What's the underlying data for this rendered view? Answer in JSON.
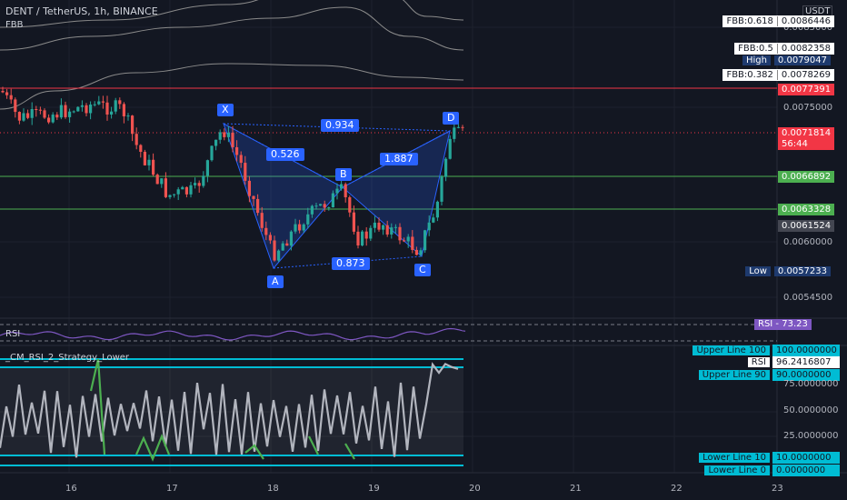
{
  "header": {
    "symbol_line": "DENT / TetherUS, 1h, BINANCE",
    "indicator": "FBB"
  },
  "currency": "USDT",
  "price_axis": {
    "ticks": [
      "0.0085000",
      "0.0075000",
      "0.0060000",
      "0.0054500"
    ],
    "tags": [
      {
        "label": "FBB:0.618",
        "value": "0.0086446",
        "style": "white"
      },
      {
        "label": "FBB:0.5",
        "value": "0.0082358",
        "style": "white"
      },
      {
        "label": "High",
        "value": "0.0079047",
        "style": "navy"
      },
      {
        "label": "FBB:0.382",
        "value": "0.0078269",
        "style": "white"
      },
      {
        "label": "",
        "value": "0.0077391",
        "style": "red"
      },
      {
        "label": "",
        "value": "0.0071814",
        "style": "red"
      },
      {
        "label": "",
        "value": "56:44",
        "style": "red"
      },
      {
        "label": "",
        "value": "0.0066892",
        "style": "green"
      },
      {
        "label": "",
        "value": "0.0063328",
        "style": "green"
      },
      {
        "label": "",
        "value": "0.0061524",
        "style": "gray"
      },
      {
        "label": "Low",
        "value": "0.0057233",
        "style": "navy"
      }
    ]
  },
  "pattern": {
    "points": [
      "X",
      "A",
      "B",
      "C",
      "D"
    ],
    "ratios": [
      "0.934",
      "0.526",
      "1.887",
      "0.873"
    ]
  },
  "rsi_pane": {
    "label": "RSI",
    "tag_label": "RSI",
    "tag_value": "73.23"
  },
  "strategy_pane": {
    "title": "_CM_RSI_2_Strategy_Lower",
    "tags": [
      {
        "label": "Upper Line 100",
        "value": "100.0000000",
        "style": "cyan"
      },
      {
        "label": "RSI",
        "value": "96.2416807",
        "style": "white"
      },
      {
        "label": "Upper Line 90",
        "value": "90.0000000",
        "style": "cyan"
      },
      {
        "label": "Lower Line 10",
        "value": "10.0000000",
        "style": "cyan"
      },
      {
        "label": "Lower Line 0",
        "value": "0.0000000",
        "style": "cyan"
      }
    ],
    "ticks": [
      "75.0000000",
      "50.0000000",
      "25.0000000"
    ]
  },
  "time_axis": [
    "16",
    "17",
    "18",
    "19",
    "20",
    "21",
    "22",
    "23"
  ],
  "colors": {
    "bg": "#131722",
    "bull": "#26a69a",
    "bear": "#ef5350",
    "pattern": "#2962ff",
    "cyan": "#00bcd4",
    "green_line": "#4caf50",
    "red_line": "#f23645"
  }
}
